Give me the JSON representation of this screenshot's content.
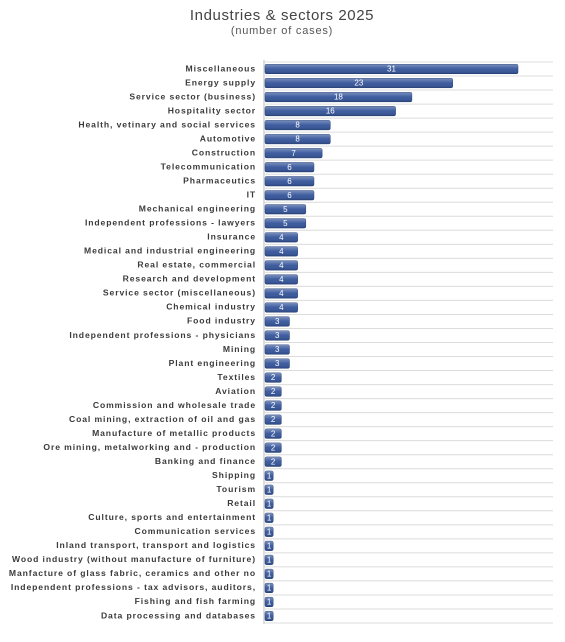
{
  "chart_data": {
    "type": "bar",
    "orientation": "horizontal",
    "title": "Industries & sectors 2025",
    "subtitle": "(number of cases)",
    "color": "#34549a",
    "categories": [
      "Miscellaneous",
      "Energy supply",
      "Service sector (business)",
      "Hospitality sector",
      "Health, vetinary and social services",
      "Automotive",
      "Construction",
      "Telecommunication",
      "Pharmaceutics",
      "IT",
      "Mechanical engineering",
      "Independent professions - lawyers",
      "Insurance",
      "Medical and industrial engineering",
      "Real estate, commercial",
      "Research and development",
      "Service sector (miscellaneous)",
      "Chemical industry",
      "Food industry",
      "Independent professions - physicians",
      "Mining",
      "Plant engineering",
      "Textiles",
      "Aviation",
      "Commission and wholesale trade",
      "Coal mining, extraction of oil and gas",
      "Manufacture of metallic products",
      "Ore mining, metalworking and - production",
      "Banking and finance",
      "Shipping",
      "Tourism",
      "Retail",
      "Culture, sports and entertainment",
      "Communication services",
      "Inland transport, transport and  logistics",
      "Wood industry (without manufacture of furniture)",
      "Manfacture of glass fabric, ceramics and other no",
      "Independent professions - tax advisors, auditors,",
      "Fishing and fish farming",
      "Data processing and databases"
    ],
    "values": [
      31,
      23,
      18,
      16,
      8,
      8,
      7,
      6,
      6,
      6,
      5,
      5,
      4,
      4,
      4,
      4,
      4,
      4,
      3,
      3,
      3,
      3,
      2,
      2,
      2,
      2,
      2,
      2,
      2,
      1,
      1,
      1,
      1,
      1,
      1,
      1,
      1,
      1,
      1,
      1
    ]
  }
}
